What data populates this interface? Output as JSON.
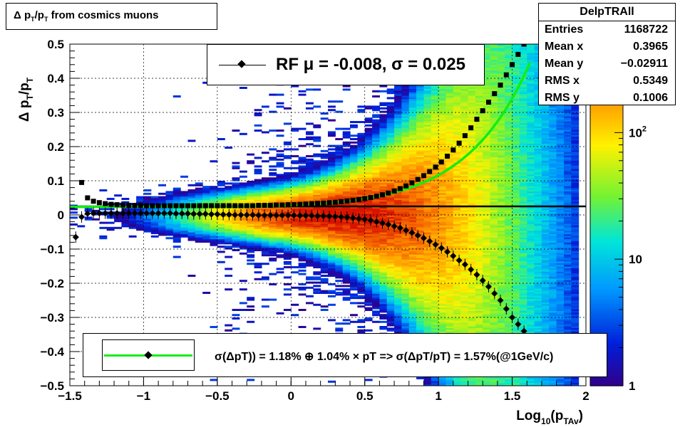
{
  "title": "Δ p_T/p_T from cosmics muons",
  "title_parts": {
    "delta": "Δ",
    "p1": "p",
    "sub1": "T",
    "slash": "/p",
    "sub2": "T",
    "rest": " from cosmics muons"
  },
  "stats": {
    "name": "DelpTRAll",
    "rows": [
      {
        "label": "Entries",
        "value": "1168722"
      },
      {
        "label": "Mean x",
        "value": "0.3965"
      },
      {
        "label": "Mean y",
        "value": "−0.02911"
      },
      {
        "label": "RMS x",
        "value": "0.5349"
      },
      {
        "label": "RMS y",
        "value": "0.1006"
      }
    ]
  },
  "rf_legend": {
    "text": "RF μ = -0.008, σ =   0.025"
  },
  "fit_legend": {
    "text": "σ(ΔpT)) =  1.18% ⊕  1.04% × pT => σ(ΔpT/pT) =  1.57%(@1GeV/c)"
  },
  "colors": {
    "fit_line": "#11ee11",
    "markers": "#000000"
  },
  "chart_data": {
    "type": "heatmap",
    "xlabel": "Log10(pTAv)",
    "xlabel_parts": {
      "main": "Log",
      "sub": "10",
      "open": "(p",
      "sub2": "TAv",
      "close": ")"
    },
    "ylabel": "Δ pT/pT",
    "xlim": [
      -1.5,
      2.0
    ],
    "ylim": [
      -0.5,
      0.5
    ],
    "x_ticks": [
      "−1.5",
      "−1",
      "−0.5",
      "0",
      "0.5",
      "1",
      "1.5",
      "2"
    ],
    "x_tick_values": [
      -1.5,
      -1,
      -0.5,
      0,
      0.5,
      1,
      1.5,
      2
    ],
    "y_ticks": [
      "−0.5",
      "−0.4",
      "−0.3",
      "−0.2",
      "−0.1",
      "0",
      "0.1",
      "0.2",
      "0.3",
      "0.4",
      "0.5"
    ],
    "y_tick_values": [
      -0.5,
      -0.4,
      -0.3,
      -0.2,
      -0.1,
      0,
      0.1,
      0.2,
      0.3,
      0.4,
      0.5
    ],
    "z_log": true,
    "z_range": [
      1,
      500
    ],
    "z_ticks": [
      {
        "value": 1,
        "label": "1"
      },
      {
        "value": 10,
        "label": "10"
      },
      {
        "value": 100,
        "label": "10",
        "sup": "2"
      }
    ],
    "mean_markers": {
      "x": [
        -1.46,
        -1.42,
        -1.38,
        -1.34,
        -1.3,
        -1.26,
        -1.22,
        -1.18,
        -1.14,
        -1.1,
        -1.06,
        -1.02,
        -0.98,
        -0.94,
        -0.9,
        -0.86,
        -0.82,
        -0.78,
        -0.74,
        -0.7,
        -0.66,
        -0.62,
        -0.58,
        -0.54,
        -0.5,
        -0.46,
        -0.42,
        -0.38,
        -0.34,
        -0.3,
        -0.26,
        -0.22,
        -0.18,
        -0.14,
        -0.1,
        -0.06,
        -0.02,
        0.02,
        0.06,
        0.1,
        0.14,
        0.18,
        0.22,
        0.26,
        0.3,
        0.34,
        0.38,
        0.42,
        0.46,
        0.5,
        0.54,
        0.58,
        0.62,
        0.66,
        0.7,
        0.74,
        0.78,
        0.82,
        0.86,
        0.9,
        0.94,
        0.98,
        1.02,
        1.06,
        1.1,
        1.14,
        1.18,
        1.22,
        1.26,
        1.3,
        1.34,
        1.38,
        1.42,
        1.46,
        1.5,
        1.54,
        1.58
      ],
      "y": [
        -0.065,
        -0.006,
        0.004,
        0.005,
        0.005,
        0.005,
        0.005,
        0.005,
        0.005,
        0.005,
        0.005,
        0.005,
        0.005,
        0.005,
        0.005,
        0.005,
        0.005,
        0.004,
        0.004,
        0.004,
        0.003,
        0.003,
        0.003,
        0.002,
        0.002,
        0.001,
        0.001,
        0.0,
        0.0,
        0.0,
        0.0,
        -0.001,
        -0.001,
        -0.001,
        -0.001,
        -0.001,
        -0.001,
        -0.001,
        -0.002,
        -0.002,
        -0.002,
        -0.003,
        -0.003,
        -0.004,
        -0.005,
        -0.006,
        -0.007,
        -0.009,
        -0.011,
        -0.013,
        -0.016,
        -0.02,
        -0.024,
        -0.028,
        -0.033,
        -0.038,
        -0.045,
        -0.052,
        -0.06,
        -0.068,
        -0.077,
        -0.087,
        -0.097,
        -0.108,
        -0.12,
        -0.133,
        -0.145,
        -0.16,
        -0.175,
        -0.192,
        -0.21,
        -0.23,
        -0.25,
        -0.275,
        -0.3,
        -0.32,
        -0.34
      ]
    },
    "sigma_markers": {
      "x": [
        -1.42,
        -1.38,
        -1.34,
        -1.3,
        -1.26,
        -1.22,
        -1.18,
        -1.14,
        -1.1,
        -1.06,
        -1.02,
        -0.98,
        -0.94,
        -0.9,
        -0.86,
        -0.82,
        -0.78,
        -0.74,
        -0.7,
        -0.66,
        -0.62,
        -0.58,
        -0.54,
        -0.5,
        -0.46,
        -0.42,
        -0.38,
        -0.34,
        -0.3,
        -0.26,
        -0.22,
        -0.18,
        -0.14,
        -0.1,
        -0.06,
        -0.02,
        0.02,
        0.06,
        0.1,
        0.14,
        0.18,
        0.22,
        0.26,
        0.3,
        0.34,
        0.38,
        0.42,
        0.46,
        0.5,
        0.54,
        0.58,
        0.62,
        0.66,
        0.7,
        0.74,
        0.78,
        0.82,
        0.86,
        0.9,
        0.94,
        0.98,
        1.02,
        1.06,
        1.1,
        1.14,
        1.18,
        1.22,
        1.26,
        1.3,
        1.34,
        1.38,
        1.42,
        1.46,
        1.5,
        1.54,
        1.58
      ],
      "y": [
        0.095,
        0.05,
        0.04,
        0.036,
        0.033,
        0.031,
        0.03,
        0.029,
        0.028,
        0.028,
        0.028,
        0.027,
        0.027,
        0.027,
        0.027,
        0.027,
        0.027,
        0.027,
        0.027,
        0.027,
        0.027,
        0.027,
        0.027,
        0.027,
        0.027,
        0.027,
        0.027,
        0.027,
        0.027,
        0.027,
        0.028,
        0.028,
        0.028,
        0.029,
        0.029,
        0.03,
        0.03,
        0.031,
        0.032,
        0.033,
        0.034,
        0.035,
        0.036,
        0.037,
        0.039,
        0.041,
        0.043,
        0.045,
        0.048,
        0.051,
        0.055,
        0.059,
        0.064,
        0.07,
        0.077,
        0.085,
        0.094,
        0.104,
        0.115,
        0.127,
        0.14,
        0.155,
        0.172,
        0.19,
        0.21,
        0.232,
        0.255,
        0.28,
        0.305,
        0.33,
        0.355,
        0.38,
        0.41,
        0.44,
        0.47,
        0.5
      ]
    },
    "rf_line_y": 0.025,
    "fit": {
      "a": 0.0118,
      "b": 0.0104
    }
  }
}
